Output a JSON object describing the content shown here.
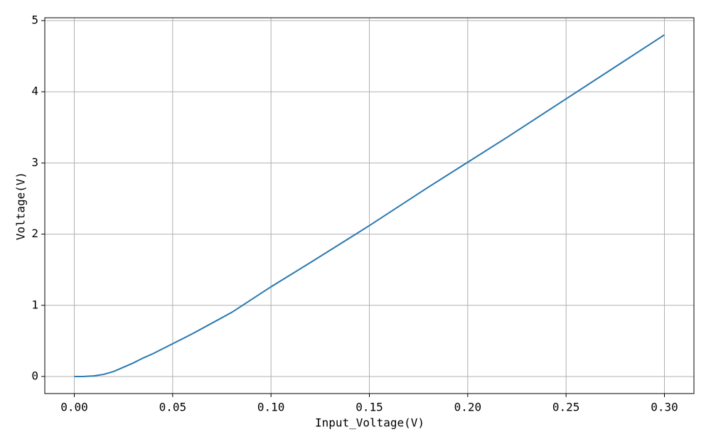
{
  "chart_data": {
    "type": "line",
    "xlabel": "Input_Voltage(V)",
    "ylabel": "Voltage(V)",
    "x": [
      0,
      0.005,
      0.01,
      0.015,
      0.02,
      0.025,
      0.03,
      0.035,
      0.04,
      0.05,
      0.06,
      0.07,
      0.08,
      0.1,
      0.12,
      0.15,
      0.18,
      0.2,
      0.22,
      0.25,
      0.28,
      0.3
    ],
    "series": [
      {
        "name": "Voltage",
        "color": "#2878b0",
        "values": [
          0,
          0.001,
          0.008,
          0.03,
          0.07,
          0.13,
          0.19,
          0.26,
          0.32,
          0.46,
          0.6,
          0.75,
          0.9,
          1.26,
          1.6,
          2.12,
          2.66,
          3.01,
          3.36,
          3.9,
          4.44,
          4.8
        ]
      }
    ],
    "xlim": [
      -0.015,
      0.315
    ],
    "ylim": [
      -0.24,
      5.04
    ],
    "xticks": [
      {
        "value": 0,
        "label": "0.00"
      },
      {
        "value": 0.05,
        "label": "0.05"
      },
      {
        "value": 0.1,
        "label": "0.10"
      },
      {
        "value": 0.15,
        "label": "0.15"
      },
      {
        "value": 0.2,
        "label": "0.20"
      },
      {
        "value": 0.25,
        "label": "0.25"
      },
      {
        "value": 0.3,
        "label": "0.30"
      }
    ],
    "yticks": [
      0,
      1,
      2,
      3,
      4,
      5
    ],
    "grid": true
  }
}
